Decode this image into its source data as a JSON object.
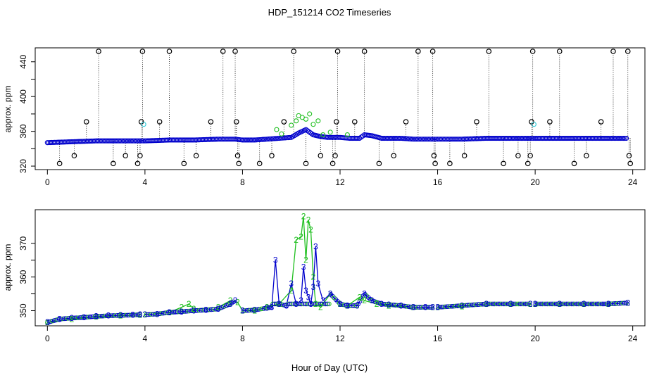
{
  "title": "HDP_151214  CO2 Timeseries",
  "xlabel": "Hour of Day (UTC)",
  "colors": {
    "series1": "#000000",
    "series2": "#1fbf1f",
    "series3": "#0000cc",
    "series_alt": "#29c8d8",
    "axis": "#000000"
  },
  "chart_data": [
    {
      "type": "scatter",
      "panel": "top",
      "ylabel": "approx. ppm",
      "xlim": [
        -0.5,
        24.5
      ],
      "ylim": [
        316,
        456
      ],
      "xticks": [
        0,
        4,
        8,
        12,
        16,
        20,
        24
      ],
      "yticks": [
        320,
        360,
        400,
        440
      ],
      "series": [
        {
          "name": "1",
          "marker": "circle",
          "color": "#000000",
          "spikes": [
            {
              "x": 0.5,
              "y": 323
            },
            {
              "x": 1.1,
              "y": 332
            },
            {
              "x": 1.6,
              "y": 371
            },
            {
              "x": 2.1,
              "y": 452
            },
            {
              "x": 2.7,
              "y": 323
            },
            {
              "x": 3.2,
              "y": 332
            },
            {
              "x": 3.7,
              "y": 323
            },
            {
              "x": 3.8,
              "y": 332
            },
            {
              "x": 3.85,
              "y": 371
            },
            {
              "x": 3.9,
              "y": 452
            },
            {
              "x": 4.6,
              "y": 371
            },
            {
              "x": 5.0,
              "y": 452
            },
            {
              "x": 5.6,
              "y": 323
            },
            {
              "x": 6.1,
              "y": 332
            },
            {
              "x": 6.7,
              "y": 371
            },
            {
              "x": 7.2,
              "y": 452
            },
            {
              "x": 7.7,
              "y": 452
            },
            {
              "x": 7.75,
              "y": 371
            },
            {
              "x": 7.8,
              "y": 332
            },
            {
              "x": 7.85,
              "y": 323
            },
            {
              "x": 8.7,
              "y": 323
            },
            {
              "x": 9.2,
              "y": 332
            },
            {
              "x": 9.7,
              "y": 371
            },
            {
              "x": 10.1,
              "y": 452
            },
            {
              "x": 10.6,
              "y": 323
            },
            {
              "x": 11.2,
              "y": 332
            },
            {
              "x": 11.7,
              "y": 323
            },
            {
              "x": 11.8,
              "y": 332
            },
            {
              "x": 11.85,
              "y": 371
            },
            {
              "x": 11.9,
              "y": 452
            },
            {
              "x": 12.6,
              "y": 371
            },
            {
              "x": 13.0,
              "y": 452
            },
            {
              "x": 13.6,
              "y": 323
            },
            {
              "x": 14.2,
              "y": 332
            },
            {
              "x": 14.7,
              "y": 371
            },
            {
              "x": 15.2,
              "y": 452
            },
            {
              "x": 15.8,
              "y": 452
            },
            {
              "x": 15.85,
              "y": 332
            },
            {
              "x": 15.9,
              "y": 323
            },
            {
              "x": 16.5,
              "y": 323
            },
            {
              "x": 17.1,
              "y": 332
            },
            {
              "x": 17.6,
              "y": 371
            },
            {
              "x": 18.1,
              "y": 452
            },
            {
              "x": 18.7,
              "y": 323
            },
            {
              "x": 19.3,
              "y": 332
            },
            {
              "x": 19.7,
              "y": 323
            },
            {
              "x": 19.8,
              "y": 332
            },
            {
              "x": 19.85,
              "y": 371
            },
            {
              "x": 19.9,
              "y": 452
            },
            {
              "x": 20.6,
              "y": 371
            },
            {
              "x": 21.0,
              "y": 452
            },
            {
              "x": 21.6,
              "y": 323
            },
            {
              "x": 22.1,
              "y": 332
            },
            {
              "x": 22.7,
              "y": 371
            },
            {
              "x": 23.2,
              "y": 452
            },
            {
              "x": 23.8,
              "y": 452
            },
            {
              "x": 23.85,
              "y": 332
            },
            {
              "x": 23.9,
              "y": 323
            }
          ]
        },
        {
          "name": "3",
          "marker": "circle",
          "color": "#0000cc",
          "baseline": [
            {
              "x": 0.0,
              "y": 347
            },
            {
              "x": 1.0,
              "y": 348
            },
            {
              "x": 2.0,
              "y": 349
            },
            {
              "x": 3.0,
              "y": 349
            },
            {
              "x": 3.8,
              "y": 349
            },
            {
              "x": 4.0,
              "y": 349
            },
            {
              "x": 5.0,
              "y": 350
            },
            {
              "x": 6.0,
              "y": 350
            },
            {
              "x": 7.0,
              "y": 351
            },
            {
              "x": 7.7,
              "y": 351
            },
            {
              "x": 8.0,
              "y": 350
            },
            {
              "x": 8.5,
              "y": 350
            },
            {
              "x": 9.0,
              "y": 351
            },
            {
              "x": 9.5,
              "y": 352
            },
            {
              "x": 10.0,
              "y": 353
            },
            {
              "x": 10.3,
              "y": 358
            },
            {
              "x": 10.6,
              "y": 362
            },
            {
              "x": 10.9,
              "y": 356
            },
            {
              "x": 11.2,
              "y": 354
            },
            {
              "x": 11.5,
              "y": 353
            },
            {
              "x": 12.0,
              "y": 353
            },
            {
              "x": 12.4,
              "y": 352
            },
            {
              "x": 12.8,
              "y": 352
            },
            {
              "x": 13.0,
              "y": 356
            },
            {
              "x": 13.3,
              "y": 355
            },
            {
              "x": 13.7,
              "y": 352
            },
            {
              "x": 14.5,
              "y": 352
            },
            {
              "x": 15.0,
              "y": 351
            },
            {
              "x": 15.8,
              "y": 351
            },
            {
              "x": 16.0,
              "y": 351
            },
            {
              "x": 17.0,
              "y": 351
            },
            {
              "x": 18.0,
              "y": 352
            },
            {
              "x": 19.0,
              "y": 352
            },
            {
              "x": 19.8,
              "y": 352
            },
            {
              "x": 20.0,
              "y": 352
            },
            {
              "x": 21.0,
              "y": 352
            },
            {
              "x": 22.0,
              "y": 352
            },
            {
              "x": 23.0,
              "y": 352
            },
            {
              "x": 23.8,
              "y": 352
            }
          ]
        }
      ]
    },
    {
      "type": "line",
      "panel": "bottom",
      "ylabel": "approx. ppm",
      "xlim": [
        -0.5,
        24.5
      ],
      "ylim": [
        345.5,
        380
      ],
      "xticks": [
        0,
        4,
        8,
        12,
        16,
        20,
        24
      ],
      "yticks": [
        350,
        360,
        370
      ],
      "series": [
        {
          "name": "3",
          "color": "#0000cc",
          "x": [
            0,
            0.5,
            1,
            1.5,
            2,
            2.5,
            3,
            3.5,
            3.8,
            4,
            4.5,
            5,
            5.5,
            6,
            6.5,
            7,
            7.5,
            7.7,
            8,
            8.5,
            9,
            9.2,
            9.35,
            9.5,
            9.8,
            10,
            10.2,
            10.4,
            10.5,
            10.6,
            10.7,
            10.8,
            10.9,
            11,
            11.1,
            11.3,
            11.6,
            12,
            12.3,
            12.7,
            13,
            13.3,
            13.7,
            14,
            14.5,
            15,
            15.5,
            15.8,
            16,
            17,
            18,
            19,
            19.8,
            20,
            21,
            22,
            23,
            23.8
          ],
          "y": [
            346.5,
            347.5,
            347.8,
            348,
            348.3,
            348.5,
            348.6,
            348.7,
            348.8,
            348.8,
            349,
            349.5,
            349.7,
            350,
            350.2,
            350.5,
            352,
            353,
            350,
            350.2,
            350.8,
            351,
            365,
            352,
            351.5,
            358,
            352,
            353,
            363,
            356,
            354,
            352,
            357,
            369,
            358,
            353,
            355,
            352,
            351.5,
            351.5,
            355,
            353,
            352,
            351.8,
            351.5,
            351,
            351,
            351,
            351,
            351.5,
            352,
            352,
            352,
            352,
            352,
            352,
            352,
            352.3
          ]
        },
        {
          "name": "2",
          "color": "#1fbf1f",
          "x": [
            0,
            1,
            2,
            3,
            3.8,
            4,
            5,
            5.5,
            5.8,
            6,
            7,
            7.5,
            7.8,
            8,
            8.5,
            9,
            9.5,
            10,
            10.2,
            10.4,
            10.5,
            10.6,
            10.7,
            10.8,
            10.9,
            11,
            11.2,
            11.6,
            12,
            12.3,
            12.8,
            13,
            13.5,
            14,
            15,
            15.8,
            16,
            17,
            18,
            19,
            19.8,
            20,
            21,
            22,
            23,
            23.8
          ],
          "y": [
            346.5,
            347.5,
            348.2,
            348.5,
            348.7,
            348.8,
            349.5,
            351,
            352,
            350.5,
            351,
            353,
            352.5,
            350,
            350,
            351,
            352,
            356,
            371,
            372,
            378,
            365,
            377,
            374,
            360,
            352,
            351,
            355,
            352,
            351.5,
            354,
            353,
            352,
            351.5,
            351,
            351,
            351,
            351.3,
            352,
            352,
            352,
            352,
            352,
            352,
            352,
            352.3
          ]
        }
      ]
    }
  ]
}
